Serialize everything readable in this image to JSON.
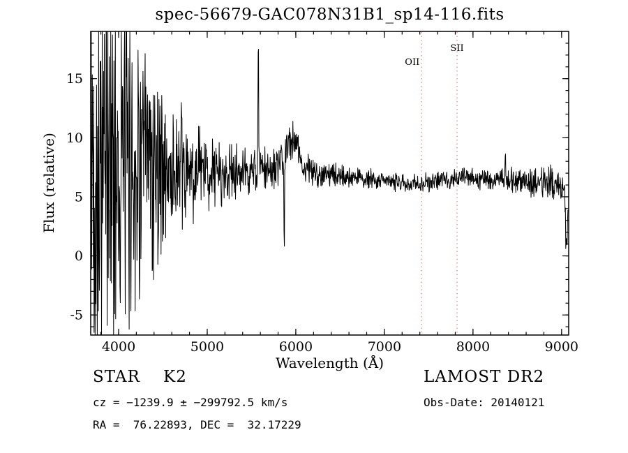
{
  "chart_data": {
    "type": "line",
    "title": "spec-56679-GAC078N31B1_sp14-116.fits",
    "xlabel": "Wavelength (Å)",
    "ylabel": "Flux (relative)",
    "xlim": [
      3685,
      9080
    ],
    "ylim": [
      -6.7,
      19.0
    ],
    "xticks": [
      4000,
      5000,
      6000,
      7000,
      8000,
      9000
    ],
    "yticks": [
      -5,
      0,
      5,
      10,
      15
    ],
    "x_minor_step": 200,
    "y_minor_step": 1,
    "grid": false,
    "legend": "none",
    "background": "#ffffff",
    "line_color": "#000000",
    "marker_line_color": "#cc8888",
    "marker_lines": [
      {
        "label": "OII",
        "x": 7420,
        "style": "dotted",
        "label_level": 2,
        "label_anchor": "end"
      },
      {
        "label": "SII",
        "x": 7820,
        "style": "dotted",
        "label_level": 1,
        "label_anchor": "middle"
      }
    ],
    "series": [
      {
        "name": "spectrum",
        "description": "Noisy stellar spectrum: large noise at blue end clipped by frame, continuum near flux 6-7, strong narrow sky emission spike at 5577 A, broad bump near 5950 A, narrow dip near 5870 A, small spike near 8365 A, drop at red edge.",
        "sample_step_angstrom": 4,
        "noise_seed": 42,
        "baseline_points": [
          [
            3685,
            6.5
          ],
          [
            3800,
            7.5
          ],
          [
            3950,
            8.0
          ],
          [
            4100,
            7.8
          ],
          [
            4250,
            7.5
          ],
          [
            4400,
            7.8
          ],
          [
            4600,
            7.0
          ],
          [
            4800,
            6.8
          ],
          [
            5000,
            7.2
          ],
          [
            5200,
            6.9
          ],
          [
            5400,
            7.0
          ],
          [
            5600,
            7.2
          ],
          [
            5800,
            7.4
          ],
          [
            5900,
            8.0
          ],
          [
            5980,
            8.4
          ],
          [
            6100,
            7.4
          ],
          [
            6250,
            7.0
          ],
          [
            6400,
            6.8
          ],
          [
            6600,
            6.7
          ],
          [
            6800,
            6.5
          ],
          [
            7000,
            6.4
          ],
          [
            7200,
            6.2
          ],
          [
            7400,
            6.1
          ],
          [
            7550,
            6.3
          ],
          [
            7700,
            6.5
          ],
          [
            7900,
            6.6
          ],
          [
            8100,
            6.5
          ],
          [
            8300,
            6.5
          ],
          [
            8500,
            6.3
          ],
          [
            8700,
            6.2
          ],
          [
            8850,
            6.4
          ],
          [
            8950,
            5.8
          ],
          [
            9070,
            5.3
          ]
        ],
        "noise_amplitude_points": [
          [
            3685,
            13.0
          ],
          [
            3800,
            12.0
          ],
          [
            3900,
            11.0
          ],
          [
            4000,
            9.5
          ],
          [
            4100,
            8.0
          ],
          [
            4200,
            7.0
          ],
          [
            4350,
            6.0
          ],
          [
            4500,
            4.5
          ],
          [
            4650,
            3.5
          ],
          [
            4800,
            2.6
          ],
          [
            5000,
            2.0
          ],
          [
            5200,
            1.6
          ],
          [
            5400,
            1.3
          ],
          [
            5600,
            1.1
          ],
          [
            5800,
            1.0
          ],
          [
            6000,
            0.9
          ],
          [
            6200,
            0.7
          ],
          [
            6500,
            0.55
          ],
          [
            6800,
            0.5
          ],
          [
            7100,
            0.45
          ],
          [
            7400,
            0.45
          ],
          [
            7700,
            0.5
          ],
          [
            8000,
            0.5
          ],
          [
            8300,
            0.6
          ],
          [
            8600,
            0.75
          ],
          [
            8900,
            0.8
          ],
          [
            9070,
            0.9
          ]
        ],
        "spikes": [
          {
            "x": 5577,
            "sigma": 4,
            "amp": 11.2
          },
          {
            "x": 5870,
            "sigma": 4,
            "amp": -6.5
          },
          {
            "x": 5950,
            "sigma": 55,
            "amp": 1.6
          },
          {
            "x": 6020,
            "sigma": 10,
            "amp": 1.5
          },
          {
            "x": 8365,
            "sigma": 4,
            "amp": 2.6
          },
          {
            "x": 9055,
            "sigma": 10,
            "amp": -4.3
          }
        ]
      }
    ]
  },
  "footer": {
    "class_label": "STAR    K2",
    "survey": "LAMOST DR2",
    "cz_line": "cz = −1239.9 ± −299792.5 km/s",
    "obs_date": "Obs-Date: 20140121",
    "ra_dec": "RA =  76.22893, DEC =  32.17229"
  }
}
